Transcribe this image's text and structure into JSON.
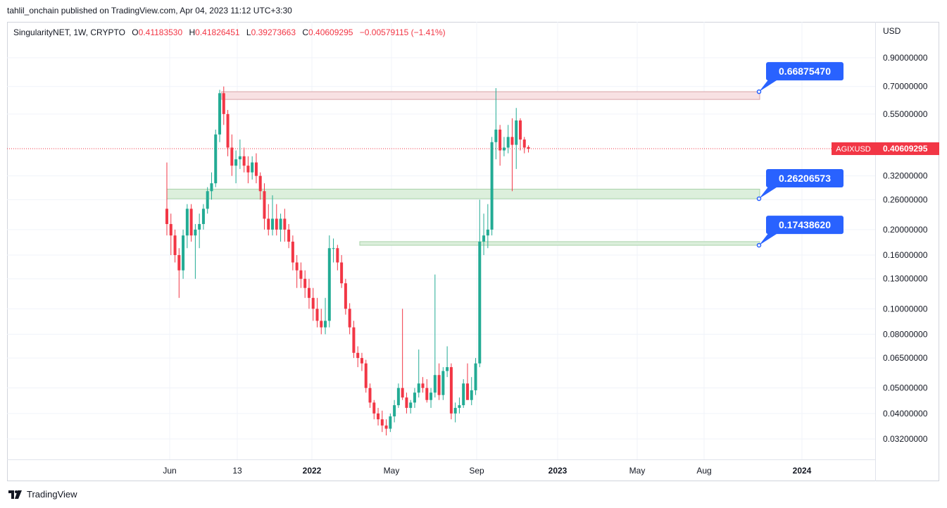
{
  "header": {
    "published_text": "tahlil_onchain published on TradingView.com, Apr 04, 2023 11:12 UTC+3:30"
  },
  "legend": {
    "symbol": "SingularityNET, 1W, CRYPTO",
    "o_label": "O",
    "o_value": "0.41183530",
    "h_label": "H",
    "h_value": "0.41826451",
    "l_label": "L",
    "l_value": "0.39273663",
    "c_label": "C",
    "c_value": "0.40609295",
    "change": "−0.00579115 (−1.41%)"
  },
  "brand": {
    "name": "TradingView"
  },
  "colors": {
    "up": "#22ab94",
    "down": "#f23645",
    "callout": "#2962ff",
    "resistance_fill": "#f8e1e3",
    "resistance_border": "#d9a4a8",
    "support_fill": "#dcefdc",
    "support_border": "#a9d3a9"
  },
  "chart_data": {
    "type": "candlestick",
    "title": "SingularityNET, 1W, CRYPTO",
    "currency": "USD",
    "scale": "log",
    "ylim": [
      0.029,
      1.05
    ],
    "y_ticks": [
      "0.90000000",
      "0.70000000",
      "0.55000000",
      "0.32000000",
      "0.26000000",
      "0.20000000",
      "0.16000000",
      "0.13000000",
      "0.10000000",
      "0.08000000",
      "0.06500000",
      "0.05000000",
      "0.04000000",
      "0.03200000"
    ],
    "x_ticks": [
      "Jun",
      "13",
      "2022",
      "May",
      "Sep",
      "2023",
      "May",
      "Aug",
      "2024"
    ],
    "bold_x_ticks": [
      "2022",
      "2023",
      "2024"
    ],
    "x_tick_week": [
      0,
      1,
      2,
      3,
      4,
      5,
      6,
      7,
      8
    ],
    "weeks_start": "2021-05-10",
    "last_price": {
      "symbol": "AGIXUSD",
      "value": "0.40609295",
      "price": 0.40609295
    },
    "levels": [
      {
        "label": "0.66875470",
        "price": 0.6687547,
        "type": "resistance",
        "from_week": 14,
        "band_low": 0.625
      },
      {
        "label": "0.26206573",
        "price": 0.26206573,
        "type": "support",
        "from_week": 0,
        "band_high": 0.285
      },
      {
        "label": "0.17438620",
        "price": 0.1743862,
        "type": "support",
        "from_week": 48,
        "band_high": 0.18
      }
    ],
    "candles": [
      [
        0.24,
        0.36,
        0.19,
        0.21
      ],
      [
        0.21,
        0.23,
        0.16,
        0.19
      ],
      [
        0.19,
        0.2,
        0.15,
        0.16
      ],
      [
        0.16,
        0.17,
        0.11,
        0.14
      ],
      [
        0.14,
        0.2,
        0.13,
        0.19
      ],
      [
        0.19,
        0.25,
        0.17,
        0.24
      ],
      [
        0.24,
        0.25,
        0.18,
        0.19
      ],
      [
        0.19,
        0.21,
        0.13,
        0.2
      ],
      [
        0.2,
        0.23,
        0.17,
        0.21
      ],
      [
        0.21,
        0.25,
        0.2,
        0.24
      ],
      [
        0.24,
        0.29,
        0.23,
        0.28
      ],
      [
        0.28,
        0.33,
        0.26,
        0.3
      ],
      [
        0.3,
        0.48,
        0.29,
        0.46
      ],
      [
        0.46,
        0.68,
        0.43,
        0.66
      ],
      [
        0.66,
        0.7,
        0.5,
        0.55
      ],
      [
        0.55,
        0.57,
        0.38,
        0.41
      ],
      [
        0.41,
        0.46,
        0.32,
        0.35
      ],
      [
        0.35,
        0.4,
        0.3,
        0.37
      ],
      [
        0.37,
        0.44,
        0.34,
        0.38
      ],
      [
        0.38,
        0.41,
        0.33,
        0.35
      ],
      [
        0.35,
        0.38,
        0.3,
        0.33
      ],
      [
        0.33,
        0.38,
        0.31,
        0.36
      ],
      [
        0.36,
        0.39,
        0.3,
        0.32
      ],
      [
        0.32,
        0.33,
        0.26,
        0.28
      ],
      [
        0.28,
        0.3,
        0.2,
        0.22
      ],
      [
        0.22,
        0.25,
        0.19,
        0.2
      ],
      [
        0.2,
        0.27,
        0.19,
        0.22
      ],
      [
        0.22,
        0.25,
        0.19,
        0.2
      ],
      [
        0.2,
        0.23,
        0.18,
        0.22
      ],
      [
        0.22,
        0.24,
        0.18,
        0.2
      ],
      [
        0.2,
        0.21,
        0.17,
        0.18
      ],
      [
        0.18,
        0.19,
        0.14,
        0.15
      ],
      [
        0.15,
        0.16,
        0.12,
        0.14
      ],
      [
        0.14,
        0.15,
        0.12,
        0.13
      ],
      [
        0.13,
        0.14,
        0.11,
        0.12
      ],
      [
        0.12,
        0.13,
        0.1,
        0.11
      ],
      [
        0.11,
        0.12,
        0.09,
        0.1
      ],
      [
        0.1,
        0.11,
        0.085,
        0.09
      ],
      [
        0.09,
        0.1,
        0.08,
        0.085
      ],
      [
        0.085,
        0.11,
        0.08,
        0.09
      ],
      [
        0.09,
        0.19,
        0.085,
        0.17
      ],
      [
        0.17,
        0.185,
        0.15,
        0.17
      ],
      [
        0.17,
        0.175,
        0.14,
        0.15
      ],
      [
        0.15,
        0.16,
        0.12,
        0.125
      ],
      [
        0.125,
        0.13,
        0.095,
        0.1
      ],
      [
        0.1,
        0.105,
        0.08,
        0.085
      ],
      [
        0.085,
        0.09,
        0.065,
        0.068
      ],
      [
        0.068,
        0.072,
        0.06,
        0.065
      ],
      [
        0.065,
        0.068,
        0.058,
        0.062
      ],
      [
        0.062,
        0.064,
        0.048,
        0.05
      ],
      [
        0.05,
        0.052,
        0.042,
        0.044
      ],
      [
        0.044,
        0.045,
        0.038,
        0.04
      ],
      [
        0.04,
        0.042,
        0.036,
        0.038
      ],
      [
        0.038,
        0.041,
        0.034,
        0.036
      ],
      [
        0.036,
        0.038,
        0.033,
        0.035
      ],
      [
        0.035,
        0.04,
        0.034,
        0.039
      ],
      [
        0.039,
        0.045,
        0.037,
        0.043
      ],
      [
        0.043,
        0.052,
        0.042,
        0.05
      ],
      [
        0.05,
        0.1,
        0.045,
        0.046
      ],
      [
        0.046,
        0.048,
        0.04,
        0.042
      ],
      [
        0.042,
        0.045,
        0.04,
        0.044
      ],
      [
        0.044,
        0.05,
        0.042,
        0.048
      ],
      [
        0.048,
        0.07,
        0.046,
        0.052
      ],
      [
        0.052,
        0.055,
        0.048,
        0.05
      ],
      [
        0.05,
        0.054,
        0.044,
        0.045
      ],
      [
        0.045,
        0.05,
        0.042,
        0.048
      ],
      [
        0.048,
        0.135,
        0.046,
        0.056
      ],
      [
        0.056,
        0.062,
        0.045,
        0.047
      ],
      [
        0.047,
        0.06,
        0.045,
        0.058
      ],
      [
        0.058,
        0.072,
        0.055,
        0.06
      ],
      [
        0.06,
        0.062,
        0.038,
        0.04
      ],
      [
        0.04,
        0.044,
        0.037,
        0.042
      ],
      [
        0.042,
        0.046,
        0.04,
        0.043
      ],
      [
        0.043,
        0.054,
        0.042,
        0.052
      ],
      [
        0.052,
        0.062,
        0.048,
        0.045
      ],
      [
        0.045,
        0.055,
        0.043,
        0.049
      ],
      [
        0.049,
        0.065,
        0.047,
        0.062
      ],
      [
        0.062,
        0.26,
        0.06,
        0.18
      ],
      [
        0.18,
        0.23,
        0.16,
        0.19
      ],
      [
        0.19,
        0.25,
        0.17,
        0.2
      ],
      [
        0.2,
        0.45,
        0.19,
        0.43
      ],
      [
        0.43,
        0.69,
        0.37,
        0.48
      ],
      [
        0.48,
        0.5,
        0.35,
        0.4
      ],
      [
        0.4,
        0.45,
        0.38,
        0.41
      ],
      [
        0.41,
        0.5,
        0.39,
        0.45
      ],
      [
        0.45,
        0.53,
        0.28,
        0.42
      ],
      [
        0.42,
        0.58,
        0.34,
        0.52
      ],
      [
        0.52,
        0.53,
        0.4,
        0.44
      ],
      [
        0.44,
        0.45,
        0.39,
        0.41
      ],
      [
        0.4118353,
        0.41826451,
        0.39273663,
        0.40609295
      ]
    ]
  }
}
